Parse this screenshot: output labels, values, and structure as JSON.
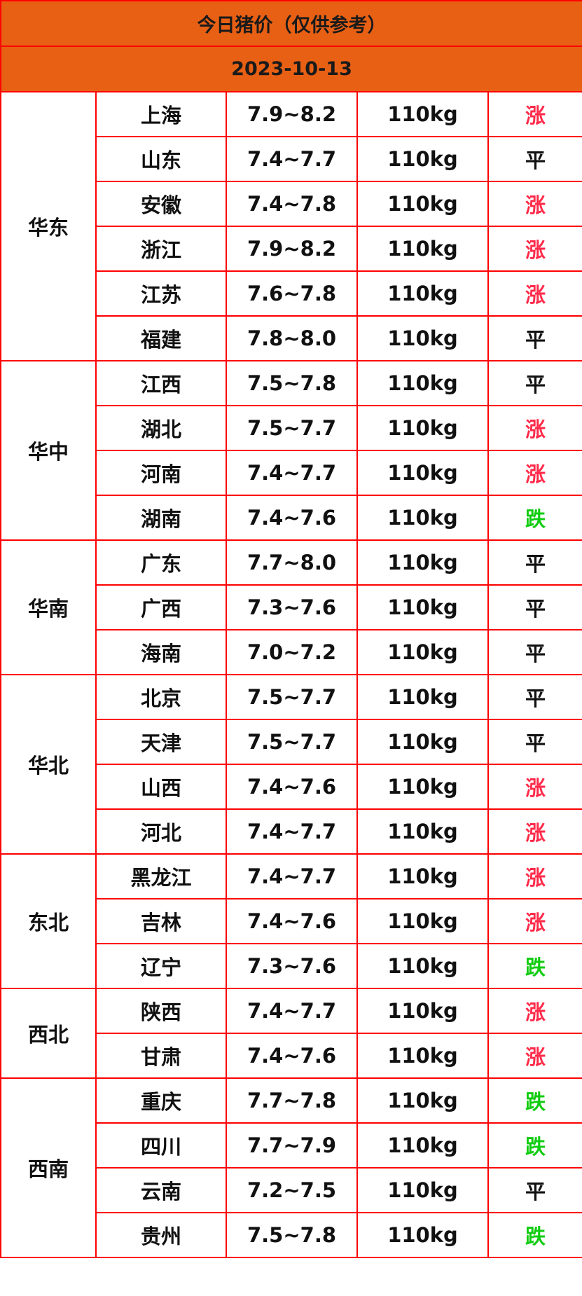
{
  "title": "今日猪价（仅供参考）",
  "date": "2023-10-13",
  "colors": {
    "header_bg": "#e86014",
    "border": "#ff0000",
    "up": "#ff2a4a",
    "down": "#11cc11",
    "flat": "#111111"
  },
  "regions": [
    {
      "name": "华东",
      "rows": [
        {
          "province": "上海",
          "price": "7.9~8.2",
          "weight": "110kg",
          "trend": "涨"
        },
        {
          "province": "山东",
          "price": "7.4~7.7",
          "weight": "110kg",
          "trend": "平"
        },
        {
          "province": "安徽",
          "price": "7.4~7.8",
          "weight": "110kg",
          "trend": "涨"
        },
        {
          "province": "浙江",
          "price": "7.9~8.2",
          "weight": "110kg",
          "trend": "涨"
        },
        {
          "province": "江苏",
          "price": "7.6~7.8",
          "weight": "110kg",
          "trend": "涨"
        },
        {
          "province": "福建",
          "price": "7.8~8.0",
          "weight": "110kg",
          "trend": "平"
        }
      ]
    },
    {
      "name": "华中",
      "rows": [
        {
          "province": "江西",
          "price": "7.5~7.8",
          "weight": "110kg",
          "trend": "平"
        },
        {
          "province": "湖北",
          "price": "7.5~7.7",
          "weight": "110kg",
          "trend": "涨"
        },
        {
          "province": "河南",
          "price": "7.4~7.7",
          "weight": "110kg",
          "trend": "涨"
        },
        {
          "province": "湖南",
          "price": "7.4~7.6",
          "weight": "110kg",
          "trend": "跌"
        }
      ]
    },
    {
      "name": "华南",
      "rows": [
        {
          "province": "广东",
          "price": "7.7~8.0",
          "weight": "110kg",
          "trend": "平"
        },
        {
          "province": "广西",
          "price": "7.3~7.6",
          "weight": "110kg",
          "trend": "平"
        },
        {
          "province": "海南",
          "price": "7.0~7.2",
          "weight": "110kg",
          "trend": "平"
        }
      ]
    },
    {
      "name": "华北",
      "rows": [
        {
          "province": "北京",
          "price": "7.5~7.7",
          "weight": "110kg",
          "trend": "平"
        },
        {
          "province": "天津",
          "price": "7.5~7.7",
          "weight": "110kg",
          "trend": "平"
        },
        {
          "province": "山西",
          "price": "7.4~7.6",
          "weight": "110kg",
          "trend": "涨"
        },
        {
          "province": "河北",
          "price": "7.4~7.7",
          "weight": "110kg",
          "trend": "涨"
        }
      ]
    },
    {
      "name": "东北",
      "rows": [
        {
          "province": "黑龙江",
          "price": "7.4~7.7",
          "weight": "110kg",
          "trend": "涨"
        },
        {
          "province": "吉林",
          "price": "7.4~7.6",
          "weight": "110kg",
          "trend": "涨"
        },
        {
          "province": "辽宁",
          "price": "7.3~7.6",
          "weight": "110kg",
          "trend": "跌"
        }
      ]
    },
    {
      "name": "西北",
      "rows": [
        {
          "province": "陕西",
          "price": "7.4~7.7",
          "weight": "110kg",
          "trend": "涨"
        },
        {
          "province": "甘肃",
          "price": "7.4~7.6",
          "weight": "110kg",
          "trend": "涨"
        }
      ]
    },
    {
      "name": "西南",
      "rows": [
        {
          "province": "重庆",
          "price": "7.7~7.8",
          "weight": "110kg",
          "trend": "跌"
        },
        {
          "province": "四川",
          "price": "7.7~7.9",
          "weight": "110kg",
          "trend": "跌"
        },
        {
          "province": "云南",
          "price": "7.2~7.5",
          "weight": "110kg",
          "trend": "平"
        },
        {
          "province": "贵州",
          "price": "7.5~7.8",
          "weight": "110kg",
          "trend": "跌"
        }
      ]
    }
  ]
}
